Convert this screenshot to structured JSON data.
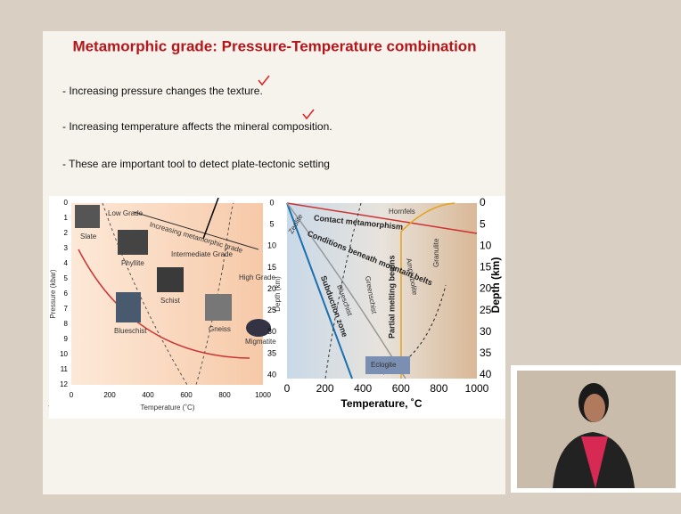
{
  "slide": {
    "title": "Metamorphic grade: Pressure-Temperature combination",
    "bullets": [
      "- Increasing pressure changes the texture.",
      "- Increasing temperature affects the mineral composition.",
      "- These are important tool to detect plate-tectonic setting"
    ],
    "left_diagram": {
      "y_label": "Pressure (kbar)",
      "y_ticks": [
        0,
        1,
        2,
        3,
        4,
        5,
        6,
        7,
        8,
        9,
        10,
        11,
        12
      ],
      "x_label": "Temperature (˚C)",
      "x_ticks": [
        0,
        200,
        400,
        600,
        800,
        1000
      ],
      "arrow_label": "Increasing metamorphic grade",
      "grades": [
        "Low Grade",
        "Intermediate Grade",
        "High Grade"
      ],
      "rocks": [
        "Slate",
        "Phyllite",
        "Schist",
        "Blueschist",
        "Gneiss",
        "Migmatite"
      ]
    },
    "right_diagram": {
      "y_label": "Depth (km)",
      "y_ticks": [
        0,
        5,
        10,
        15,
        20,
        25,
        30,
        35,
        40
      ],
      "y2_label": "Depth (km)",
      "y2_ticks": [
        0,
        5,
        10,
        15,
        20,
        25,
        30,
        35,
        40
      ],
      "x_label": "Temperature, ˚C",
      "x_ticks": [
        0,
        200,
        400,
        600,
        800,
        1000
      ],
      "facies": [
        "Hornfels",
        "Contact metamorphism",
        "Zeolite",
        "Conditions beneath mountain belts",
        "Subduction zone",
        "Blueschist",
        "Greenschist",
        "Partial melting begins",
        "Amphibolite",
        "Granulite",
        "Eclogite"
      ]
    }
  }
}
